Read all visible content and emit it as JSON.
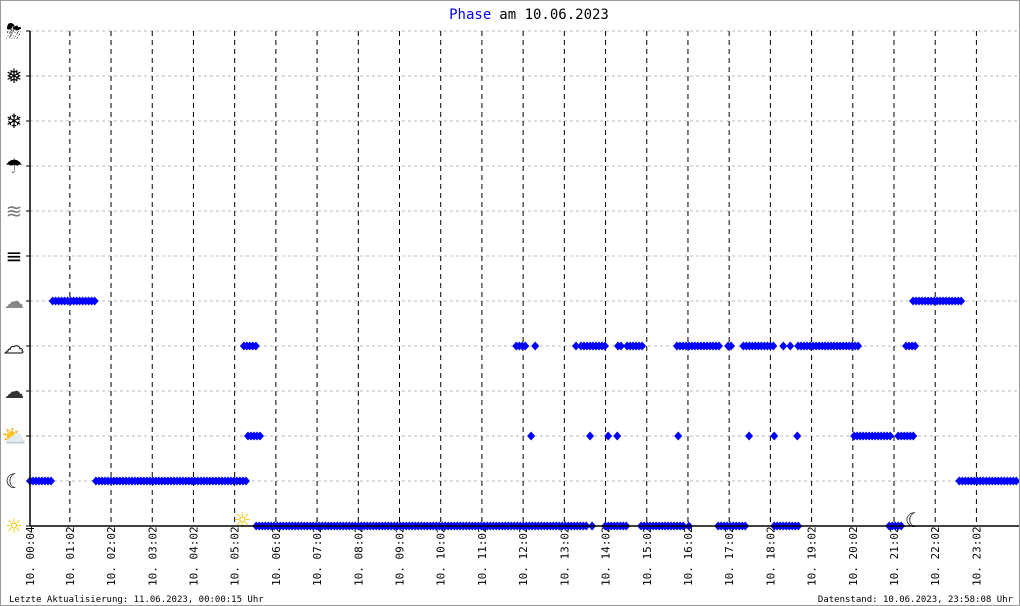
{
  "chart_data": {
    "type": "scatter",
    "title_highlight": "Phase",
    "title_rest": "am 10.06.2023",
    "title_color": "#0000ff",
    "marker_color": "#0000ff",
    "x_unit": "hours of day 10.06.2023",
    "xlim": [
      0,
      24
    ],
    "x_tick_labels": [
      "10. 00:04",
      "10. 01:02",
      "10. 02:02",
      "10. 03:02",
      "10. 04:02",
      "10. 05:02",
      "10. 06:02",
      "10. 07:02",
      "10. 08:02",
      "10. 09:02",
      "10. 10:02",
      "10. 11:02",
      "10. 12:02",
      "10. 13:02",
      "10. 14:02",
      "10. 15:02",
      "10. 16:02",
      "10. 17:02",
      "10. 18:02",
      "10. 19:02",
      "10. 20:02",
      "10. 21:02",
      "10. 22:02",
      "10. 23:02"
    ],
    "y_categories": [
      "sun-icon",
      "moon-icon",
      "sun-behind-cloud-icon",
      "moon-behind-cloud-icon",
      "cloud-icon",
      "overcast-cloud-icon",
      "fog-icon",
      "mist-icon",
      "rain-icon",
      "sleet-icon",
      "snow-icon",
      "thunderstorm-icon"
    ],
    "grid": true,
    "sunrise_hour": 5.2,
    "sunset_hour": 21.35,
    "series": [
      {
        "category": "sun-icon",
        "segments": [
          [
            5.49,
            13.5
          ],
          [
            13.64,
            13.64
          ],
          [
            13.96,
            14.51
          ],
          [
            14.83,
            15.87
          ],
          [
            15.99,
            15.99
          ],
          [
            16.7,
            17.38
          ],
          [
            18.06,
            18.71
          ],
          [
            20.85,
            21.21
          ]
        ]
      },
      {
        "category": "moon-icon",
        "segments": [
          [
            0,
            0.58
          ],
          [
            1.6,
            5.26
          ],
          [
            22.55,
            24
          ]
        ]
      },
      {
        "category": "sun-behind-cloud-icon",
        "segments": [
          [
            5.29,
            5.61
          ],
          [
            12.16,
            12.16
          ],
          [
            13.59,
            13.59
          ],
          [
            14.03,
            14.03
          ],
          [
            14.25,
            14.25
          ],
          [
            15.73,
            15.73
          ],
          [
            17.45,
            17.45
          ],
          [
            18.06,
            18.06
          ],
          [
            18.62,
            18.62
          ],
          [
            20.0,
            20.92
          ],
          [
            21.07,
            21.48
          ]
        ]
      },
      {
        "category": "cloud-icon",
        "segments": [
          [
            5.19,
            5.53
          ],
          [
            11.8,
            12.04
          ],
          [
            12.26,
            12.26
          ],
          [
            13.25,
            13.25
          ],
          [
            13.37,
            14.0
          ],
          [
            14.27,
            14.39
          ],
          [
            14.49,
            14.88
          ],
          [
            15.7,
            16.77
          ],
          [
            16.94,
            17.06
          ],
          [
            17.31,
            18.08
          ],
          [
            18.28,
            18.28
          ],
          [
            18.45,
            18.45
          ],
          [
            18.64,
            20.1
          ],
          [
            21.26,
            21.55
          ]
        ]
      },
      {
        "category": "overcast-cloud-icon",
        "segments": [
          [
            0.55,
            1.6
          ],
          [
            21.43,
            22.61
          ]
        ]
      }
    ]
  },
  "footer": {
    "last_update": "Letzte Aktualisierung: 11.06.2023, 00:00:15 Uhr",
    "data_state": "Datenstand: 10.06.2023, 23:58:08 Uhr"
  }
}
